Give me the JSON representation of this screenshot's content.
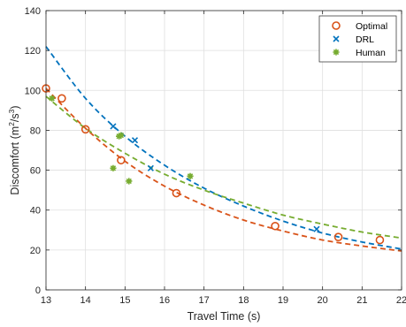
{
  "chart_data": {
    "type": "scatter",
    "xlabel": "Travel Time (s)",
    "ylabel_main": "Discomfort (m",
    "ylabel_sup1": "2",
    "ylabel_mid": "/s",
    "ylabel_sup2": "3",
    "ylabel_end": ")",
    "xlim": [
      13,
      22
    ],
    "ylim": [
      0,
      140
    ],
    "xticks": [
      13,
      14,
      15,
      16,
      17,
      18,
      19,
      20,
      21,
      22
    ],
    "yticks": [
      0,
      20,
      40,
      60,
      80,
      100,
      120,
      140
    ],
    "grid": true,
    "legend_position": "top-right",
    "series": [
      {
        "name": "Optimal",
        "marker": "circle",
        "color": "#D95319",
        "points": [
          {
            "x": 13.0,
            "y": 101
          },
          {
            "x": 13.4,
            "y": 96
          },
          {
            "x": 14.0,
            "y": 80.5
          },
          {
            "x": 14.9,
            "y": 65
          },
          {
            "x": 16.3,
            "y": 48.5
          },
          {
            "x": 18.8,
            "y": 32
          },
          {
            "x": 20.4,
            "y": 26.5
          },
          {
            "x": 21.45,
            "y": 25
          }
        ],
        "fit": [
          {
            "x": 13.0,
            "y": 101
          },
          {
            "x": 14.0,
            "y": 81
          },
          {
            "x": 15.0,
            "y": 64.5
          },
          {
            "x": 16.0,
            "y": 52
          },
          {
            "x": 17.0,
            "y": 42.5
          },
          {
            "x": 18.0,
            "y": 35
          },
          {
            "x": 19.0,
            "y": 29.5
          },
          {
            "x": 20.0,
            "y": 25
          },
          {
            "x": 21.0,
            "y": 22
          },
          {
            "x": 22.0,
            "y": 19.5
          }
        ]
      },
      {
        "name": "DRL",
        "marker": "x",
        "color": "#0072BD",
        "points": [
          {
            "x": 14.7,
            "y": 82
          },
          {
            "x": 15.25,
            "y": 75
          },
          {
            "x": 15.65,
            "y": 61
          },
          {
            "x": 19.85,
            "y": 30.5
          }
        ],
        "fit": [
          {
            "x": 13.0,
            "y": 122
          },
          {
            "x": 14.0,
            "y": 96
          },
          {
            "x": 15.0,
            "y": 77
          },
          {
            "x": 16.0,
            "y": 62.5
          },
          {
            "x": 17.0,
            "y": 51
          },
          {
            "x": 18.0,
            "y": 42
          },
          {
            "x": 19.0,
            "y": 34.5
          },
          {
            "x": 20.0,
            "y": 28.5
          },
          {
            "x": 21.0,
            "y": 24
          },
          {
            "x": 22.0,
            "y": 20.5
          }
        ]
      },
      {
        "name": "Human",
        "marker": "star",
        "color": "#77AC30",
        "points": [
          {
            "x": 13.15,
            "y": 96
          },
          {
            "x": 14.7,
            "y": 61
          },
          {
            "x": 14.85,
            "y": 77
          },
          {
            "x": 14.9,
            "y": 77.5
          },
          {
            "x": 15.1,
            "y": 54.5
          },
          {
            "x": 16.65,
            "y": 57
          }
        ],
        "fit": [
          {
            "x": 13.0,
            "y": 97
          },
          {
            "x": 14.0,
            "y": 81
          },
          {
            "x": 15.0,
            "y": 68.5
          },
          {
            "x": 16.0,
            "y": 58
          },
          {
            "x": 17.0,
            "y": 50
          },
          {
            "x": 18.0,
            "y": 43.5
          },
          {
            "x": 19.0,
            "y": 37.5
          },
          {
            "x": 20.0,
            "y": 33
          },
          {
            "x": 21.0,
            "y": 29
          },
          {
            "x": 22.0,
            "y": 26
          }
        ]
      }
    ]
  }
}
